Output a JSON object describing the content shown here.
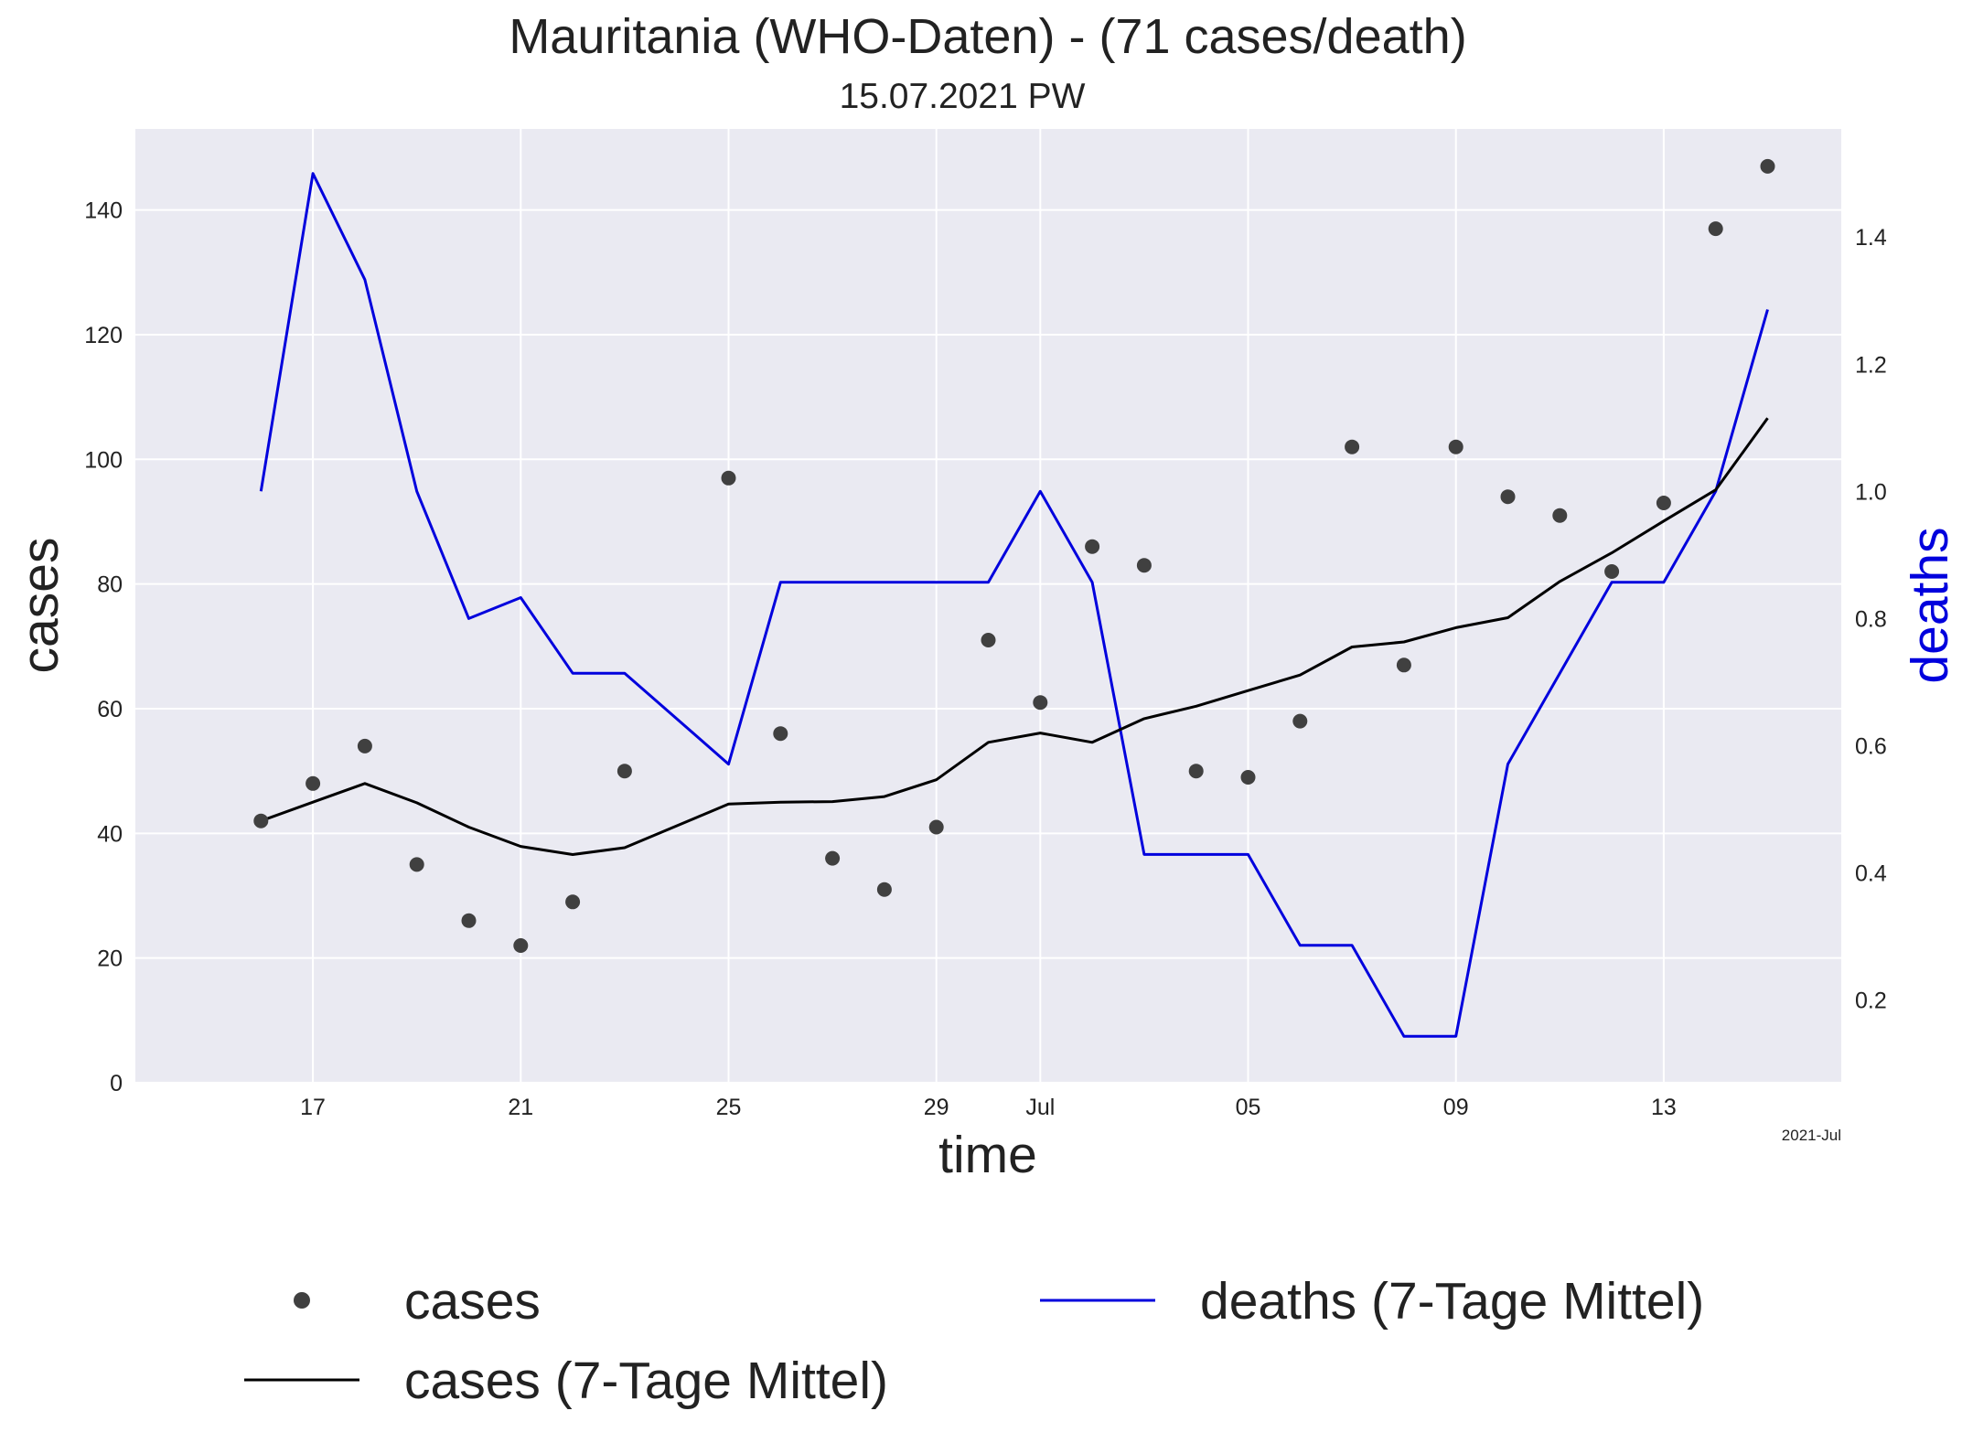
{
  "chart_data": {
    "type": "line",
    "title": "Mauritania (WHO-Daten) - (71 cases/death)",
    "subtitle": "15.07.2021 PW",
    "xlabel": "time",
    "ylabel": "cases",
    "y2label": "deaths",
    "x_corner_label": "2021-Jul",
    "x_range": [
      "2021-06-13T14:00",
      "2021-07-16T10:00"
    ],
    "ylim": [
      0,
      153
    ],
    "y2lim": [
      0.07,
      1.57
    ],
    "grid": true,
    "legend_position": "bottom",
    "x_ticks": [
      {
        "date": "2021-06-17",
        "label": "17"
      },
      {
        "date": "2021-06-21",
        "label": "21"
      },
      {
        "date": "2021-06-25",
        "label": "25"
      },
      {
        "date": "2021-06-29",
        "label": "29"
      },
      {
        "date": "2021-07-01",
        "label": "Jul"
      },
      {
        "date": "2021-07-05",
        "label": "05"
      },
      {
        "date": "2021-07-09",
        "label": "09"
      },
      {
        "date": "2021-07-13",
        "label": "13"
      }
    ],
    "y_ticks": [
      {
        "value": 0,
        "label": "0"
      },
      {
        "value": 20,
        "label": "20"
      },
      {
        "value": 40,
        "label": "40"
      },
      {
        "value": 60,
        "label": "60"
      },
      {
        "value": 80,
        "label": "80"
      },
      {
        "value": 100,
        "label": "100"
      },
      {
        "value": 120,
        "label": "120"
      },
      {
        "value": 140,
        "label": "140"
      }
    ],
    "y2_ticks": [
      {
        "value": 0.2,
        "label": "0.2"
      },
      {
        "value": 0.4,
        "label": "0.4"
      },
      {
        "value": 0.6,
        "label": "0.6"
      },
      {
        "value": 0.8,
        "label": "0.8"
      },
      {
        "value": 1.0,
        "label": "1.0"
      },
      {
        "value": 1.2,
        "label": "1.2"
      },
      {
        "value": 1.4,
        "label": "1.4"
      }
    ],
    "x": [
      "2021-06-16",
      "2021-06-17",
      "2021-06-18",
      "2021-06-19",
      "2021-06-20",
      "2021-06-21",
      "2021-06-22",
      "2021-06-23",
      "2021-06-25",
      "2021-06-26",
      "2021-06-27",
      "2021-06-28",
      "2021-06-29",
      "2021-06-30",
      "2021-07-01",
      "2021-07-02",
      "2021-07-03",
      "2021-07-04",
      "2021-07-05",
      "2021-07-06",
      "2021-07-07",
      "2021-07-08",
      "2021-07-09",
      "2021-07-10",
      "2021-07-11",
      "2021-07-12",
      "2021-07-13",
      "2021-07-14",
      "2021-07-15"
    ],
    "series": [
      {
        "name": "cases",
        "kind": "scatter",
        "color": "#404040",
        "axis": "left",
        "values": [
          42,
          48,
          54,
          35,
          26,
          22,
          29,
          50,
          97,
          56,
          36,
          31,
          41,
          71,
          61,
          86,
          83,
          50,
          49,
          58,
          102,
          67,
          102,
          94,
          91,
          82,
          93,
          137,
          147
        ]
      },
      {
        "name": "cases (7-Tage Mittel)",
        "kind": "line",
        "color": "#000000",
        "axis": "left",
        "values": [
          42,
          45,
          48,
          44.9,
          41,
          37.9,
          36.6,
          37.7,
          44.7,
          45,
          45.1,
          45.9,
          48.6,
          54.6,
          56.1,
          54.6,
          58.4,
          60.4,
          62.9,
          65.4,
          69.9,
          70.7,
          73,
          74.6,
          80.4,
          85,
          90.1,
          95.1,
          106.6
        ]
      },
      {
        "name": "deaths (7-Tage Mittel)",
        "kind": "line",
        "color": "#0000dd",
        "axis": "right",
        "values": [
          1.0,
          1.5,
          1.333,
          1.0,
          0.8,
          0.833,
          0.714,
          0.714,
          0.571,
          0.857,
          0.857,
          0.857,
          0.857,
          0.857,
          1.0,
          0.857,
          0.429,
          0.429,
          0.429,
          0.286,
          0.286,
          0.143,
          0.143,
          0.571,
          0.714,
          0.857,
          0.857,
          1.0,
          1.286
        ]
      }
    ]
  }
}
